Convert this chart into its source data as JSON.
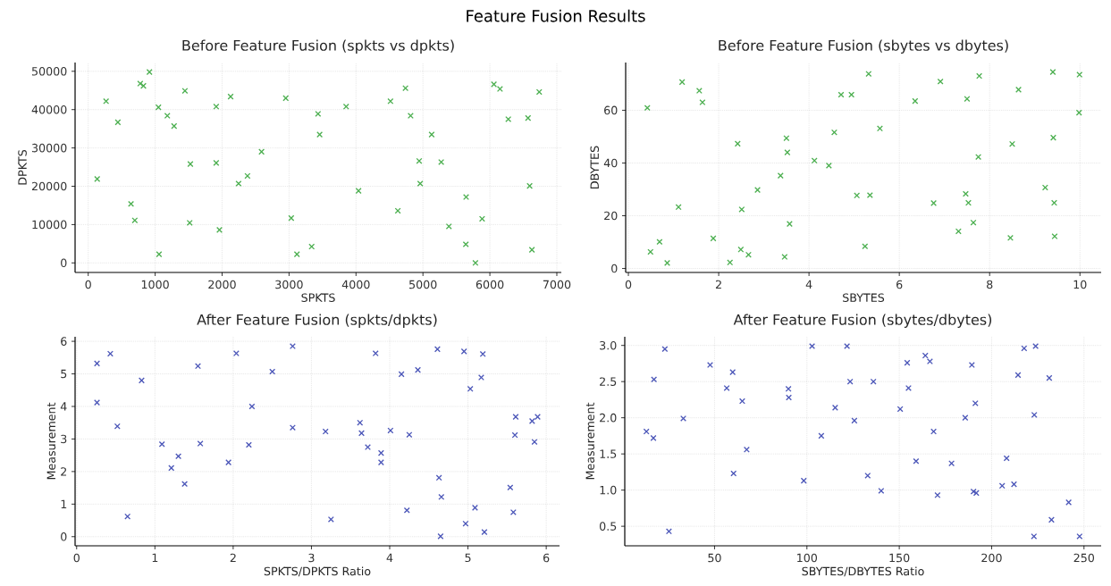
{
  "chart_data": [
    {
      "type": "other",
      "title": "Feature Fusion Results"
    },
    {
      "type": "scatter",
      "title": "Before Feature Fusion (spkts vs dpkts)",
      "xlabel": "SPKTS",
      "ylabel": "DPKTS",
      "marker": "cross",
      "grid": true,
      "xlim": [
        -196,
        7067
      ],
      "ylim": [
        -2490,
        52290
      ],
      "xticks": [
        0,
        1000,
        2000,
        3000,
        4000,
        5000,
        6000,
        7000
      ],
      "yticks": [
        0,
        10000,
        20000,
        30000,
        40000,
        50000
      ],
      "series": [
        {
          "color": "#4caf50",
          "x": [
            134,
            267,
            443,
            639,
            696,
            777,
            825,
            915,
            1049,
            1058,
            1182,
            1283,
            1445,
            1526,
            1516,
            1912,
            1912,
            1960,
            2127,
            2246,
            2379,
            2589,
            2951,
            3033,
            3118,
            3338,
            3433,
            3457,
            3853,
            4038,
            4515,
            4625,
            4739,
            4816,
            4944,
            4959,
            5130,
            5273,
            5388,
            5645,
            5641,
            5784,
            5884,
            6060,
            6151,
            6275,
            6570,
            6594,
            6628,
            6737
          ],
          "values": [
            21900,
            42200,
            36700,
            15400,
            11100,
            46800,
            46200,
            49800,
            40600,
            2260,
            38400,
            35700,
            44900,
            25800,
            10450,
            40800,
            26100,
            8600,
            43400,
            20700,
            22700,
            29000,
            43000,
            11700,
            2260,
            4260,
            38900,
            33500,
            40800,
            18800,
            42200,
            13600,
            45600,
            38400,
            26600,
            20700,
            33500,
            26300,
            9530,
            17200,
            4850,
            0,
            11500,
            46600,
            45400,
            37500,
            37800,
            20100,
            3430,
            44600
          ]
        }
      ]
    },
    {
      "type": "scatter",
      "title": "Before Feature Fusion (sbytes vs dbytes)",
      "xlabel": "SBYTES",
      "ylabel": "DBYTES",
      "marker": "cross",
      "grid": true,
      "xlim": [
        -0.06,
        10.47
      ],
      "ylim": [
        -1.5,
        78.1
      ],
      "xticks": [
        0,
        2,
        4,
        6,
        8,
        10
      ],
      "yticks": [
        0,
        20,
        40,
        60
      ],
      "series": [
        {
          "color": "#4caf50",
          "x": [
            0.42,
            0.49,
            0.69,
            0.86,
            1.11,
            1.19,
            1.57,
            1.64,
            1.88,
            2.25,
            2.42,
            2.49,
            2.51,
            2.66,
            2.86,
            3.37,
            3.46,
            3.5,
            3.52,
            3.57,
            4.12,
            4.44,
            4.56,
            4.71,
            4.94,
            5.06,
            5.24,
            5.32,
            5.35,
            5.57,
            6.35,
            6.76,
            6.91,
            7.31,
            7.47,
            7.5,
            7.53,
            7.64,
            7.75,
            7.77,
            8.46,
            8.5,
            8.64,
            9.23,
            9.4,
            9.41,
            9.43,
            9.44,
            9.98,
            9.99
          ],
          "values": [
            60.9,
            6.3,
            10.1,
            2.1,
            23.3,
            70.7,
            67.4,
            63.0,
            11.4,
            2.3,
            47.3,
            7.2,
            22.4,
            5.2,
            29.8,
            35.2,
            4.4,
            49.4,
            44.0,
            16.9,
            40.9,
            39.0,
            51.6,
            65.9,
            65.9,
            27.7,
            8.4,
            73.8,
            27.8,
            53.1,
            63.5,
            24.8,
            70.9,
            14.1,
            28.3,
            64.3,
            24.9,
            17.4,
            42.3,
            73.0,
            11.6,
            47.2,
            67.8,
            30.7,
            74.5,
            49.6,
            24.9,
            12.2,
            59.1,
            73.5
          ]
        }
      ]
    },
    {
      "type": "scatter",
      "title": "After Feature Fusion (spkts/dpkts)",
      "xlabel": "SPKTS/DPKTS Ratio",
      "ylabel": "Measurement",
      "marker": "cross",
      "grid": true,
      "xlim": [
        -0.02,
        6.17
      ],
      "ylim": [
        -0.28,
        6.14
      ],
      "xticks": [
        0,
        1,
        2,
        3,
        4,
        5,
        6
      ],
      "yticks": [
        0,
        1,
        2,
        3,
        4,
        5,
        6
      ],
      "series": [
        {
          "color": "#4b56b8",
          "x": [
            0.26,
            0.26,
            0.43,
            0.52,
            0.65,
            0.83,
            1.09,
            1.21,
            1.3,
            1.38,
            1.55,
            1.58,
            1.94,
            2.04,
            2.2,
            2.24,
            2.5,
            2.76,
            2.76,
            3.18,
            3.25,
            3.62,
            3.64,
            3.72,
            3.82,
            3.89,
            3.89,
            4.01,
            4.15,
            4.22,
            4.25,
            4.36,
            4.61,
            4.63,
            4.66,
            4.65,
            4.95,
            4.97,
            5.03,
            5.09,
            5.17,
            5.19,
            5.21,
            5.54,
            5.58,
            5.6,
            5.61,
            5.82,
            5.85,
            5.89
          ],
          "values": [
            5.32,
            4.12,
            5.62,
            3.39,
            0.62,
            4.8,
            2.84,
            2.11,
            2.47,
            1.62,
            5.24,
            2.86,
            2.28,
            5.63,
            2.82,
            4.0,
            5.07,
            5.85,
            3.35,
            3.23,
            0.53,
            3.5,
            3.18,
            2.75,
            5.63,
            2.57,
            2.28,
            3.26,
            4.99,
            0.81,
            3.13,
            5.12,
            5.76,
            1.81,
            1.22,
            0.01,
            5.69,
            0.4,
            4.54,
            0.89,
            4.89,
            5.61,
            0.14,
            1.51,
            0.75,
            3.12,
            3.68,
            3.55,
            2.91,
            3.68
          ]
        }
      ]
    },
    {
      "type": "scatter",
      "title": "After Feature Fusion (sbytes/dbytes)",
      "xlabel": "SBYTES/DBYTES Ratio",
      "ylabel": "Measurement",
      "marker": "cross",
      "grid": true,
      "xlim": [
        1.4,
        259.3
      ],
      "ylim": [
        0.23,
        3.12
      ],
      "xticks": [
        50,
        100,
        150,
        200,
        250
      ],
      "yticks": [
        {
          "value": 0.5,
          "label": "0.5"
        },
        {
          "value": 1,
          "label": "1.0"
        },
        {
          "value": 1.5,
          "label": "1.5"
        },
        {
          "value": 2,
          "label": "2.0"
        },
        {
          "value": 2.5,
          "label": "2.5"
        },
        {
          "value": 3,
          "label": "3.0"
        }
      ],
      "series": [
        {
          "color": "#4b56b8",
          "x": [
            13.1,
            16.9,
            17.2,
            23.1,
            25.3,
            33.1,
            47.6,
            56.6,
            59.8,
            60.3,
            65.0,
            67.4,
            90.0,
            90.2,
            98.3,
            102.8,
            107.8,
            115.3,
            121.7,
            123.4,
            125.7,
            132.9,
            136.0,
            140.2,
            150.5,
            154.3,
            155.0,
            159.1,
            164.1,
            166.6,
            168.6,
            170.7,
            178.3,
            185.7,
            189.3,
            190.2,
            191.7,
            191.2,
            205.7,
            208.1,
            212.1,
            214.3,
            217.6,
            222.9,
            223.1,
            223.8,
            231.2,
            232.4,
            241.7,
            247.6
          ],
          "values": [
            1.81,
            1.72,
            2.53,
            2.95,
            0.43,
            1.99,
            2.73,
            2.41,
            2.63,
            1.23,
            2.23,
            1.56,
            2.4,
            2.28,
            1.13,
            2.99,
            1.75,
            2.14,
            2.99,
            2.5,
            1.96,
            1.2,
            2.5,
            0.99,
            2.12,
            2.76,
            2.41,
            1.4,
            2.86,
            2.78,
            1.81,
            0.93,
            1.37,
            2.0,
            2.73,
            0.98,
            0.96,
            2.2,
            1.06,
            1.44,
            1.08,
            2.59,
            2.96,
            0.36,
            2.04,
            2.99,
            2.55,
            0.59,
            0.83,
            0.36
          ]
        }
      ]
    }
  ]
}
